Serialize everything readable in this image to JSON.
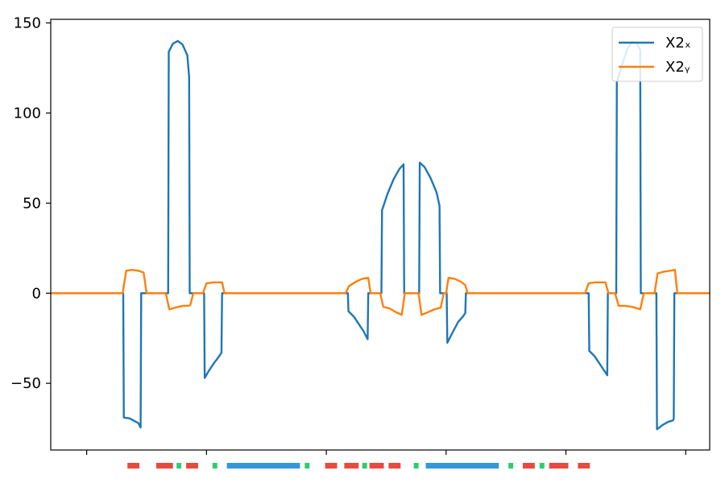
{
  "chart_data": {
    "type": "line",
    "title": "",
    "xlabel": "",
    "ylabel": "",
    "xlim": [
      -3,
      52
    ],
    "ylim": [
      -87,
      152
    ],
    "y_ticks": [
      {
        "value": 150,
        "label": "150"
      },
      {
        "value": 100,
        "label": "100"
      },
      {
        "value": 50,
        "label": "50"
      },
      {
        "value": 0,
        "label": "0"
      },
      {
        "value": -50,
        "label": "−50"
      }
    ],
    "x_ticks": [
      {
        "value": 0,
        "label": ""
      },
      {
        "value": 10,
        "label": ""
      },
      {
        "value": 20,
        "label": ""
      },
      {
        "value": 30,
        "label": ""
      },
      {
        "value": 40,
        "label": ""
      },
      {
        "value": 50,
        "label": ""
      }
    ],
    "grid": false,
    "legend_position": "top-right",
    "series": [
      {
        "name": "X2ₓ",
        "color": "#1f77b4",
        "points": [
          [
            -3,
            0
          ],
          [
            3.05,
            0
          ],
          [
            3.1,
            -69
          ],
          [
            3.6,
            -69.5
          ],
          [
            4,
            -71
          ],
          [
            4.3,
            -72
          ],
          [
            4.5,
            -74.5
          ],
          [
            4.55,
            0
          ],
          [
            6.8,
            0
          ],
          [
            6.85,
            134
          ],
          [
            7.2,
            138.5
          ],
          [
            7.6,
            140
          ],
          [
            8.0,
            138
          ],
          [
            8.4,
            132
          ],
          [
            8.55,
            120
          ],
          [
            8.6,
            0
          ],
          [
            9.8,
            0
          ],
          [
            9.85,
            -47
          ],
          [
            10.2,
            -43
          ],
          [
            10.6,
            -39
          ],
          [
            11.0,
            -35.5
          ],
          [
            11.25,
            -33
          ],
          [
            11.3,
            0
          ],
          [
            21.8,
            0
          ],
          [
            21.85,
            -10
          ],
          [
            22.3,
            -13
          ],
          [
            22.7,
            -17
          ],
          [
            23.1,
            -21
          ],
          [
            23.45,
            -25.5
          ],
          [
            23.5,
            0
          ],
          [
            24.6,
            0
          ],
          [
            24.65,
            46
          ],
          [
            25.1,
            55
          ],
          [
            25.6,
            63
          ],
          [
            26.1,
            69
          ],
          [
            26.45,
            71.5
          ],
          [
            26.5,
            0
          ],
          [
            27.75,
            0
          ],
          [
            27.8,
            72.5
          ],
          [
            28.2,
            70
          ],
          [
            28.7,
            64
          ],
          [
            29.2,
            56
          ],
          [
            29.45,
            48.5
          ],
          [
            29.5,
            0
          ],
          [
            30.05,
            0
          ],
          [
            30.1,
            -27.5
          ],
          [
            30.6,
            -21
          ],
          [
            31.0,
            -16
          ],
          [
            31.4,
            -13
          ],
          [
            31.6,
            -11
          ],
          [
            31.65,
            0
          ],
          [
            41.9,
            0
          ],
          [
            41.95,
            -32
          ],
          [
            42.4,
            -35
          ],
          [
            42.8,
            -39
          ],
          [
            43.1,
            -42
          ],
          [
            43.45,
            -45.5
          ],
          [
            43.5,
            0
          ],
          [
            44.2,
            0
          ],
          [
            44.25,
            117
          ],
          [
            44.7,
            127
          ],
          [
            45.1,
            135
          ],
          [
            45.5,
            139.5
          ],
          [
            45.9,
            139
          ],
          [
            46.2,
            135
          ],
          [
            46.25,
            0
          ],
          [
            47.55,
            0
          ],
          [
            47.6,
            -75.5
          ],
          [
            48.1,
            -73
          ],
          [
            48.5,
            -71.5
          ],
          [
            48.95,
            -70.5
          ],
          [
            49.0,
            -69.5
          ],
          [
            49.05,
            0
          ],
          [
            52,
            0
          ]
        ]
      },
      {
        "name": "X2ᵧ",
        "color": "#ff7f0e",
        "points": [
          [
            -3,
            0
          ],
          [
            3.0,
            0
          ],
          [
            3.3,
            12.5
          ],
          [
            3.8,
            13
          ],
          [
            4.3,
            12.5
          ],
          [
            4.75,
            11.5
          ],
          [
            5.0,
            0
          ],
          [
            6.6,
            0
          ],
          [
            6.9,
            -9
          ],
          [
            7.4,
            -8
          ],
          [
            8.0,
            -7
          ],
          [
            8.5,
            -7
          ],
          [
            8.65,
            -6.5
          ],
          [
            8.9,
            0
          ],
          [
            9.7,
            0
          ],
          [
            10.0,
            5.5
          ],
          [
            10.6,
            6
          ],
          [
            11.1,
            6
          ],
          [
            11.3,
            6
          ],
          [
            11.5,
            0
          ],
          [
            21.6,
            0
          ],
          [
            21.9,
            4
          ],
          [
            22.5,
            6.5
          ],
          [
            23.0,
            8
          ],
          [
            23.5,
            8.5
          ],
          [
            23.7,
            0
          ],
          [
            24.5,
            0
          ],
          [
            24.75,
            -7.5
          ],
          [
            25.3,
            -8.5
          ],
          [
            25.8,
            -10.5
          ],
          [
            26.3,
            -12
          ],
          [
            26.55,
            0
          ],
          [
            27.7,
            0
          ],
          [
            27.95,
            -12
          ],
          [
            28.5,
            -10.5
          ],
          [
            29.0,
            -9
          ],
          [
            29.55,
            -8
          ],
          [
            29.8,
            0
          ],
          [
            30.0,
            0
          ],
          [
            30.2,
            8.5
          ],
          [
            30.7,
            8
          ],
          [
            31.2,
            6.5
          ],
          [
            31.6,
            4.5
          ],
          [
            31.8,
            0
          ],
          [
            41.6,
            0
          ],
          [
            41.9,
            5.5
          ],
          [
            42.4,
            6
          ],
          [
            42.9,
            6
          ],
          [
            43.3,
            6
          ],
          [
            43.55,
            0
          ],
          [
            44.1,
            0
          ],
          [
            44.4,
            -7
          ],
          [
            44.9,
            -7
          ],
          [
            45.5,
            -7.5
          ],
          [
            46.0,
            -8.5
          ],
          [
            46.2,
            -9
          ],
          [
            46.5,
            0
          ],
          [
            47.4,
            0
          ],
          [
            47.65,
            11
          ],
          [
            48.2,
            12
          ],
          [
            48.7,
            12.5
          ],
          [
            49.1,
            13
          ],
          [
            49.3,
            0
          ],
          [
            52,
            0
          ]
        ]
      }
    ],
    "bottom_segments": [
      {
        "start": 3.4,
        "end": 4.4,
        "color": "#e84a3d"
      },
      {
        "start": 5.8,
        "end": 7.2,
        "color": "#e84a3d"
      },
      {
        "start": 7.5,
        "end": 7.9,
        "color": "#2ecc71"
      },
      {
        "start": 8.3,
        "end": 9.3,
        "color": "#e84a3d"
      },
      {
        "start": 10.5,
        "end": 10.9,
        "color": "#2ecc71"
      },
      {
        "start": 11.7,
        "end": 17.8,
        "color": "#3498db"
      },
      {
        "start": 18.2,
        "end": 18.6,
        "color": "#2ecc71"
      },
      {
        "start": 19.9,
        "end": 20.9,
        "color": "#e84a3d"
      },
      {
        "start": 21.5,
        "end": 22.7,
        "color": "#e84a3d"
      },
      {
        "start": 23.0,
        "end": 23.4,
        "color": "#2ecc71"
      },
      {
        "start": 23.6,
        "end": 24.8,
        "color": "#e84a3d"
      },
      {
        "start": 25.2,
        "end": 26.2,
        "color": "#e84a3d"
      },
      {
        "start": 27.3,
        "end": 27.7,
        "color": "#2ecc71"
      },
      {
        "start": 28.3,
        "end": 34.4,
        "color": "#3498db"
      },
      {
        "start": 35.2,
        "end": 35.6,
        "color": "#2ecc71"
      },
      {
        "start": 36.4,
        "end": 37.4,
        "color": "#e84a3d"
      },
      {
        "start": 37.8,
        "end": 38.2,
        "color": "#2ecc71"
      },
      {
        "start": 38.6,
        "end": 40.2,
        "color": "#e84a3d"
      },
      {
        "start": 41.0,
        "end": 42.0,
        "color": "#e84a3d"
      }
    ]
  }
}
